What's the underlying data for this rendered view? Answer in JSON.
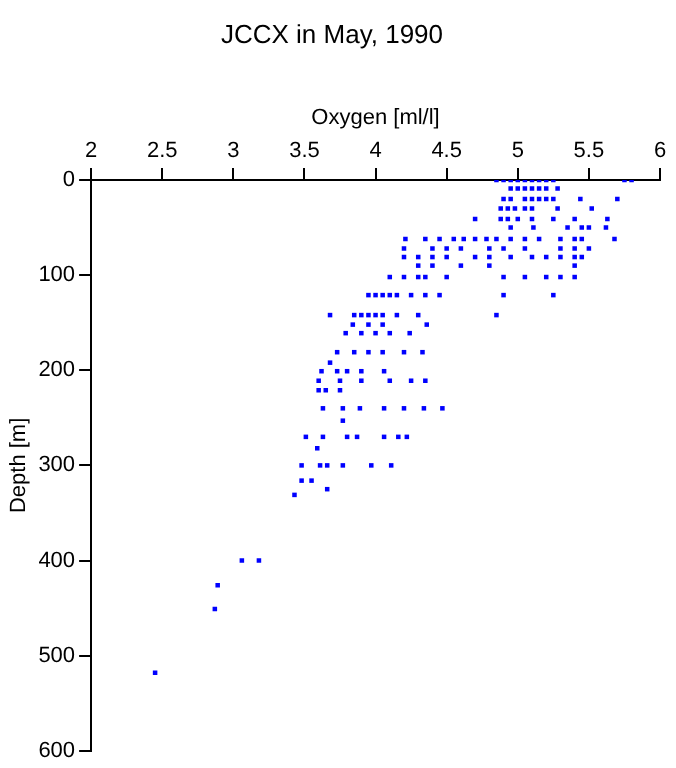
{
  "chart_data": {
    "type": "scatter",
    "title": "JCCX in May, 1990",
    "xlabel": "Oxygen [ml/l]",
    "ylabel": "Depth [m]",
    "xlim": [
      2,
      6
    ],
    "xticks": [
      2,
      2.5,
      3,
      3.5,
      4,
      4.5,
      5,
      5.5,
      6
    ],
    "ylim": [
      600,
      0
    ],
    "yticks": [
      0,
      100,
      200,
      300,
      400,
      500,
      600
    ],
    "grid": false,
    "legend": false,
    "marker": "square",
    "series": [
      {
        "color": "#0000ff",
        "x": [
          4.85,
          4.9,
          4.95,
          5.0,
          5.05,
          5.1,
          5.15,
          5.2,
          5.25,
          5.75,
          5.8,
          4.95,
          5.0,
          5.05,
          5.1,
          5.15,
          5.2,
          5.28,
          4.9,
          4.95,
          5.05,
          5.1,
          5.15,
          5.2,
          5.25,
          5.44,
          5.7,
          4.88,
          4.93,
          4.98,
          5.05,
          5.1,
          5.28,
          5.52,
          4.7,
          4.88,
          4.93,
          5.0,
          5.1,
          5.25,
          5.4,
          5.63,
          4.95,
          5.11,
          5.35,
          5.45,
          5.5,
          5.62,
          4.21,
          4.35,
          4.45,
          4.55,
          4.62,
          4.7,
          4.78,
          4.85,
          4.95,
          5.05,
          5.15,
          5.3,
          5.4,
          5.45,
          5.68,
          4.2,
          4.4,
          4.5,
          4.6,
          4.8,
          4.9,
          5.05,
          5.3,
          5.4,
          5.5,
          4.2,
          4.3,
          4.4,
          4.5,
          4.7,
          4.8,
          4.95,
          5.1,
          5.2,
          5.3,
          5.4,
          5.45,
          4.3,
          4.4,
          4.6,
          4.8,
          5.4,
          4.1,
          4.2,
          4.3,
          4.35,
          4.5,
          4.9,
          5.05,
          5.2,
          5.3,
          5.4,
          3.95,
          4.0,
          4.05,
          4.1,
          4.15,
          4.25,
          4.35,
          4.45,
          4.9,
          5.25,
          3.68,
          3.85,
          3.9,
          3.95,
          4.0,
          4.05,
          4.15,
          4.3,
          4.85,
          3.84,
          3.95,
          4.05,
          4.36,
          3.79,
          3.9,
          4.0,
          4.1,
          4.24,
          3.73,
          3.85,
          3.95,
          4.05,
          4.2,
          4.33,
          3.68,
          3.62,
          3.73,
          3.8,
          3.9,
          4.06,
          3.6,
          3.75,
          3.9,
          4.1,
          4.25,
          4.35,
          3.6,
          3.65,
          3.75,
          3.63,
          3.77,
          3.89,
          4.06,
          4.2,
          4.34,
          4.47,
          3.77,
          3.51,
          3.63,
          3.8,
          3.87,
          4.06,
          4.16,
          4.22,
          3.59,
          3.48,
          3.61,
          3.66,
          3.77,
          3.97,
          4.11,
          3.48,
          3.55,
          3.66,
          3.43,
          3.06,
          3.18,
          2.89,
          2.87,
          2.45
        ],
        "values": [
          0,
          0,
          0,
          0,
          0,
          0,
          0,
          0,
          0,
          0,
          0,
          9,
          9,
          9,
          9,
          9,
          9,
          9,
          20,
          20,
          20,
          20,
          20,
          20,
          20,
          20,
          20,
          30,
          30,
          30,
          30,
          30,
          30,
          30,
          41,
          41,
          41,
          41,
          41,
          41,
          41,
          41,
          50,
          50,
          50,
          50,
          50,
          50,
          62,
          62,
          62,
          62,
          62,
          62,
          62,
          62,
          62,
          62,
          62,
          62,
          62,
          62,
          62,
          72,
          72,
          72,
          72,
          72,
          72,
          72,
          72,
          72,
          72,
          81,
          81,
          81,
          81,
          81,
          81,
          81,
          81,
          81,
          81,
          81,
          81,
          90,
          90,
          90,
          90,
          90,
          102,
          102,
          102,
          102,
          102,
          102,
          102,
          102,
          102,
          102,
          121,
          121,
          121,
          121,
          121,
          121,
          121,
          121,
          121,
          121,
          142,
          142,
          142,
          142,
          142,
          142,
          142,
          142,
          142,
          152,
          152,
          152,
          152,
          161,
          161,
          161,
          161,
          161,
          181,
          181,
          181,
          181,
          181,
          181,
          192,
          201,
          201,
          201,
          201,
          201,
          211,
          211,
          211,
          211,
          211,
          211,
          221,
          221,
          221,
          240,
          240,
          240,
          240,
          240,
          240,
          240,
          253,
          270,
          270,
          270,
          270,
          270,
          270,
          270,
          282,
          300,
          300,
          300,
          300,
          300,
          300,
          316,
          316,
          325,
          331,
          400,
          400,
          426,
          451,
          518
        ]
      }
    ]
  }
}
